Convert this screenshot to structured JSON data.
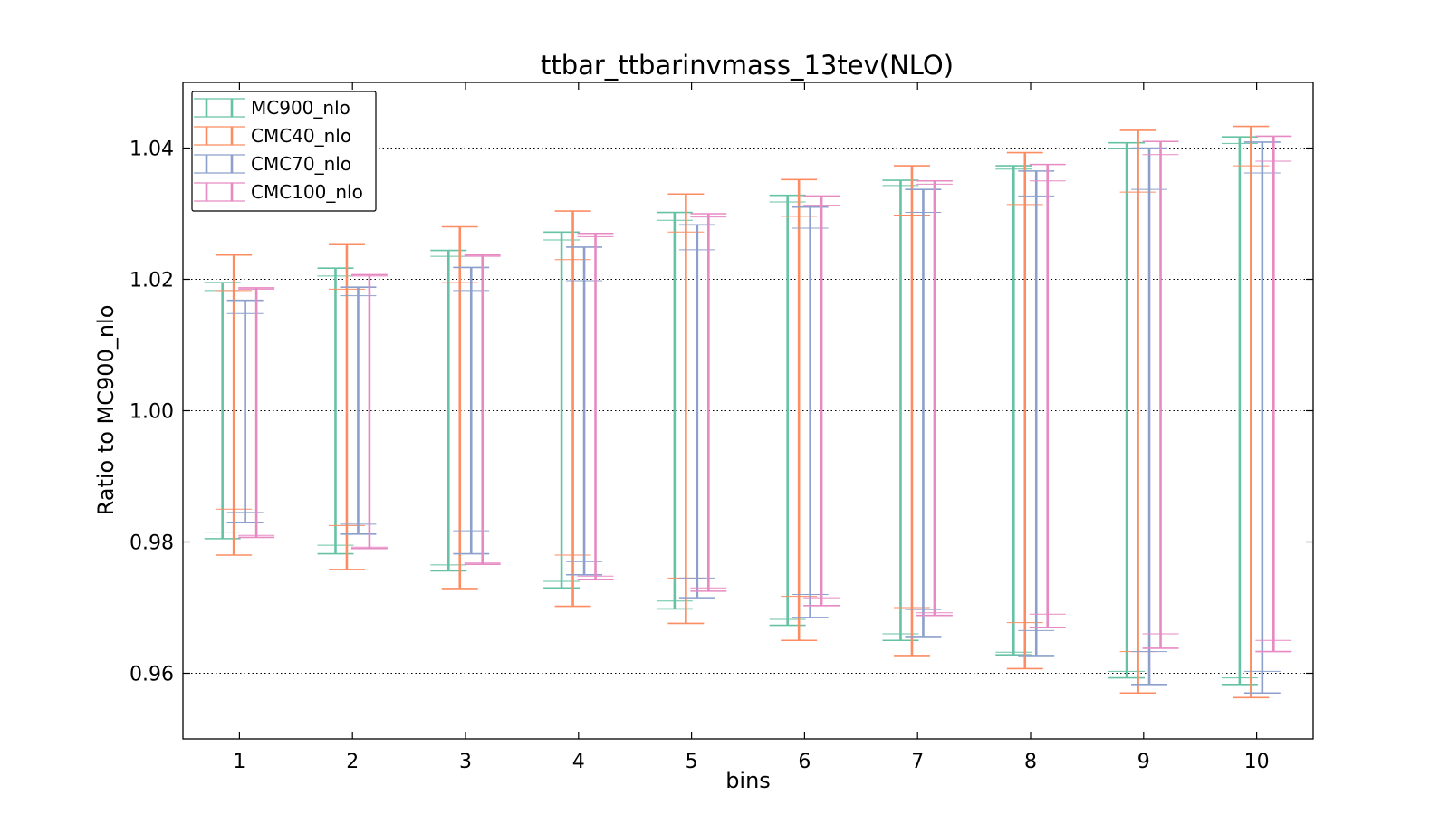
{
  "chart_data": {
    "type": "errorbar",
    "title": "ttbar_ttbarinvmass_13tev(NLO)",
    "xlabel": "bins",
    "ylabel": "Ratio to MC900_nlo",
    "categories": [
      "1",
      "2",
      "3",
      "4",
      "5",
      "6",
      "7",
      "8",
      "9",
      "10"
    ],
    "xlim": [
      0.5,
      10.5
    ],
    "ylim": [
      0.95,
      1.05
    ],
    "yticks": [
      "0.96",
      "0.98",
      "1.00",
      "1.02",
      "1.04"
    ],
    "ytick_values": [
      0.96,
      0.98,
      1.0,
      1.02,
      1.04
    ],
    "grid": "y-dotted",
    "legend_position": "top-left",
    "series": [
      {
        "name": "MC900_nlo",
        "color": "#66c2a5",
        "offset": -0.15,
        "outer_low": [
          0.9805,
          0.9782,
          0.9756,
          0.973,
          0.9698,
          0.9673,
          0.965,
          0.9628,
          0.9593,
          0.9583
        ],
        "outer_high": [
          1.0195,
          1.0217,
          1.0244,
          1.0272,
          1.0302,
          1.0328,
          1.0351,
          1.0373,
          1.0408,
          1.0417
        ],
        "inner_low": [
          0.9815,
          0.9795,
          0.9765,
          0.974,
          0.971,
          0.9682,
          0.966,
          0.9632,
          0.9603,
          0.9593
        ],
        "inner_high": [
          1.0183,
          1.0205,
          1.0235,
          1.026,
          1.029,
          1.0318,
          1.0343,
          1.0368,
          1.04,
          1.0407
        ]
      },
      {
        "name": "CMC40_nlo",
        "color": "#fc8d62",
        "offset": -0.05,
        "outer_low": [
          0.978,
          0.9758,
          0.9729,
          0.9702,
          0.9676,
          0.965,
          0.9627,
          0.9607,
          0.957,
          0.9563
        ],
        "outer_high": [
          1.0237,
          1.0254,
          1.028,
          1.0304,
          1.033,
          1.0352,
          1.0373,
          1.0393,
          1.0427,
          1.0433
        ],
        "inner_low": [
          0.985,
          0.9825,
          0.98,
          0.978,
          0.9745,
          0.9717,
          0.97,
          0.9677,
          0.9633,
          0.964
        ],
        "inner_high": [
          1.0183,
          1.0185,
          1.0195,
          1.023,
          1.0272,
          1.0296,
          1.0298,
          1.0314,
          1.0333,
          1.0373
        ]
      },
      {
        "name": "CMC70_nlo",
        "color": "#8da0cb",
        "offset": 0.05,
        "outer_low": [
          0.983,
          0.9812,
          0.9782,
          0.975,
          0.9715,
          0.9685,
          0.9656,
          0.9627,
          0.9583,
          0.957
        ],
        "outer_high": [
          1.0168,
          1.0188,
          1.0218,
          1.0249,
          1.0283,
          1.031,
          1.0337,
          1.0365,
          1.04,
          1.0409
        ],
        "inner_low": [
          0.9845,
          0.9827,
          0.9817,
          0.977,
          0.9745,
          0.972,
          0.9697,
          0.9665,
          0.9633,
          0.9603
        ],
        "inner_high": [
          1.0148,
          1.0175,
          1.0183,
          1.0198,
          1.0245,
          1.0278,
          1.0302,
          1.0327,
          1.0337,
          1.0362
        ]
      },
      {
        "name": "CMC100_nlo",
        "color": "#e78ac3",
        "offset": 0.15,
        "outer_low": [
          0.9807,
          0.979,
          0.9766,
          0.9743,
          0.9725,
          0.9703,
          0.9688,
          0.967,
          0.9638,
          0.9633
        ],
        "outer_high": [
          1.0187,
          1.0207,
          1.0237,
          1.027,
          1.03,
          1.0327,
          1.035,
          1.0375,
          1.041,
          1.0418
        ],
        "inner_low": [
          0.981,
          0.9792,
          0.9768,
          0.9748,
          0.973,
          0.9715,
          0.9692,
          0.969,
          0.966,
          0.965
        ],
        "inner_high": [
          1.0185,
          1.0205,
          1.0235,
          1.0265,
          1.0295,
          1.0313,
          1.0345,
          1.035,
          1.039,
          1.038
        ]
      }
    ]
  }
}
